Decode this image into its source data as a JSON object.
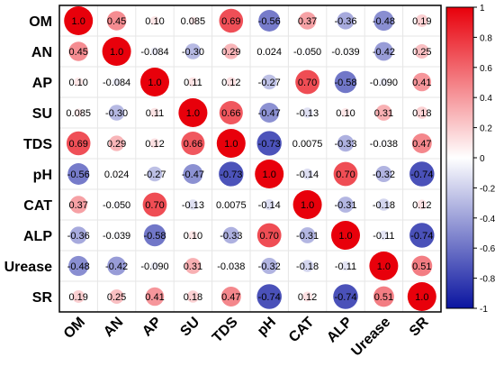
{
  "chart_data": {
    "type": "heatmap",
    "style": "circle correlation matrix",
    "variables": [
      "OM",
      "AN",
      "AP",
      "SU",
      "TDS",
      "pH",
      "CAT",
      "ALP",
      "Urease",
      "SR"
    ],
    "values": [
      [
        "1.0",
        "0.45",
        "0.10",
        "0.085",
        "0.69",
        "-0.56",
        "0.37",
        "-0.36",
        "-0.48",
        "0.19"
      ],
      [
        "0.45",
        "1.0",
        "-0.084",
        "-0.30",
        "0.29",
        "0.024",
        "-0.050",
        "-0.039",
        "-0.42",
        "0.25"
      ],
      [
        "0.10",
        "-0.084",
        "1.0",
        "0.11",
        "0.12",
        "-0.27",
        "0.70",
        "-0.58",
        "-0.090",
        "0.41"
      ],
      [
        "0.085",
        "-0.30",
        "0.11",
        "1.0",
        "0.66",
        "-0.47",
        "-0.13",
        "0.10",
        "0.31",
        "0.18"
      ],
      [
        "0.69",
        "0.29",
        "0.12",
        "0.66",
        "1.0",
        "-0.73",
        "0.0075",
        "-0.33",
        "-0.038",
        "0.47"
      ],
      [
        "-0.56",
        "0.024",
        "-0.27",
        "-0.47",
        "-0.73",
        "1.0",
        "-0.14",
        "0.70",
        "-0.32",
        "-0.74"
      ],
      [
        "0.37",
        "-0.050",
        "0.70",
        "-0.13",
        "0.0075",
        "-0.14",
        "1.0",
        "-0.31",
        "-0.18",
        "0.12"
      ],
      [
        "-0.36",
        "-0.039",
        "-0.58",
        "0.10",
        "-0.33",
        "0.70",
        "-0.31",
        "1.0",
        "-0.11",
        "-0.74"
      ],
      [
        "-0.48",
        "-0.42",
        "-0.090",
        "0.31",
        "-0.038",
        "-0.32",
        "-0.18",
        "-0.11",
        "1.0",
        "0.51"
      ],
      [
        "0.19",
        "0.25",
        "0.41",
        "0.18",
        "0.47",
        "-0.74",
        "0.12",
        "-0.74",
        "0.51",
        "1.0"
      ]
    ],
    "colorbar": {
      "range": [
        -1,
        1
      ],
      "ticks": [
        "1",
        "0.8",
        "0.6",
        "0.4",
        "0.2",
        "0",
        "-0.2",
        "-0.4",
        "-0.6",
        "-0.8",
        "-1"
      ]
    },
    "colors": {
      "positive": "#e8000b",
      "neutral": "#ffffff",
      "negative": "#0a14a0"
    },
    "grid": true,
    "legend_position": "right"
  }
}
